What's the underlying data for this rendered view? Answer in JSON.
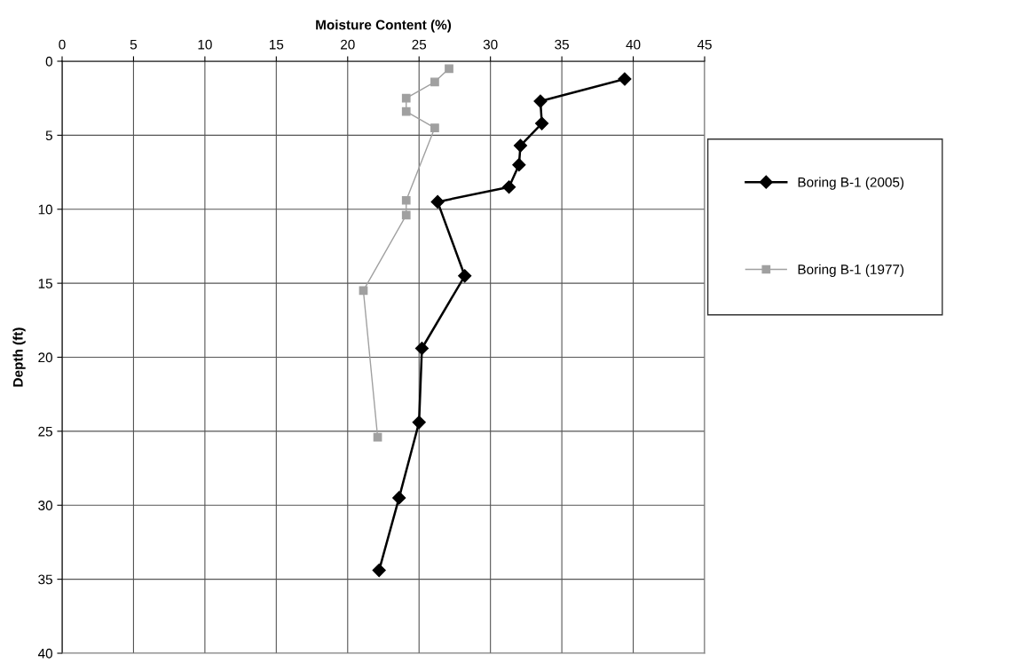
{
  "chart_data": {
    "type": "line",
    "xlabel": "Moisture Content (%)",
    "ylabel": "Depth (ft)",
    "series": [
      {
        "name": "Boring B-1 (2005)",
        "color": "#000000",
        "marker": "diamond",
        "x": [
          39.4,
          33.5,
          33.6,
          32.1,
          32.0,
          31.3,
          26.3,
          28.2,
          25.2,
          25.0,
          23.6,
          22.2
        ],
        "values": [
          1.2,
          2.7,
          4.2,
          5.7,
          7.0,
          8.5,
          9.5,
          14.5,
          19.4,
          24.4,
          29.5,
          34.4
        ]
      },
      {
        "name": "Boring B-1 (1977)",
        "color": "#a0a0a0",
        "marker": "square",
        "x": [
          27.1,
          26.1,
          24.1,
          24.1,
          26.1,
          24.1,
          24.1,
          21.1,
          22.1
        ],
        "values": [
          0.5,
          1.4,
          2.5,
          3.4,
          4.5,
          9.4,
          10.4,
          15.5,
          25.4
        ]
      }
    ],
    "xlim": [
      0,
      45
    ],
    "xticks": [
      0,
      5,
      10,
      15,
      20,
      25,
      30,
      35,
      40,
      45
    ],
    "ylim": [
      40,
      0
    ],
    "yticks": [
      0,
      5,
      10,
      15,
      20,
      25,
      30,
      35,
      40
    ],
    "grid": true,
    "legend": "right",
    "line_style": "solid"
  }
}
